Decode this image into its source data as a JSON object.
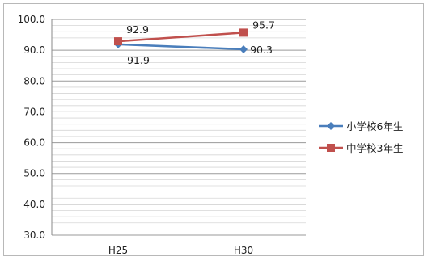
{
  "chart_data": {
    "type": "line",
    "categories": [
      "H25",
      "H30"
    ],
    "ylim": [
      30,
      100
    ],
    "ytick_labels": [
      "30.0",
      "40.0",
      "50.0",
      "60.0",
      "70.0",
      "80.0",
      "90.0",
      "100.0"
    ],
    "grid": true,
    "legend_position": "right",
    "series": [
      {
        "name": "小学校6年生",
        "values": [
          91.9,
          90.3
        ],
        "labels": [
          "91.9",
          "90.3"
        ],
        "color": "#4a7ebb",
        "marker": "diamond"
      },
      {
        "name": "中学校3年生",
        "values": [
          92.9,
          95.7
        ],
        "labels": [
          "92.9",
          "95.7"
        ],
        "color": "#c0504d",
        "marker": "square"
      }
    ]
  }
}
